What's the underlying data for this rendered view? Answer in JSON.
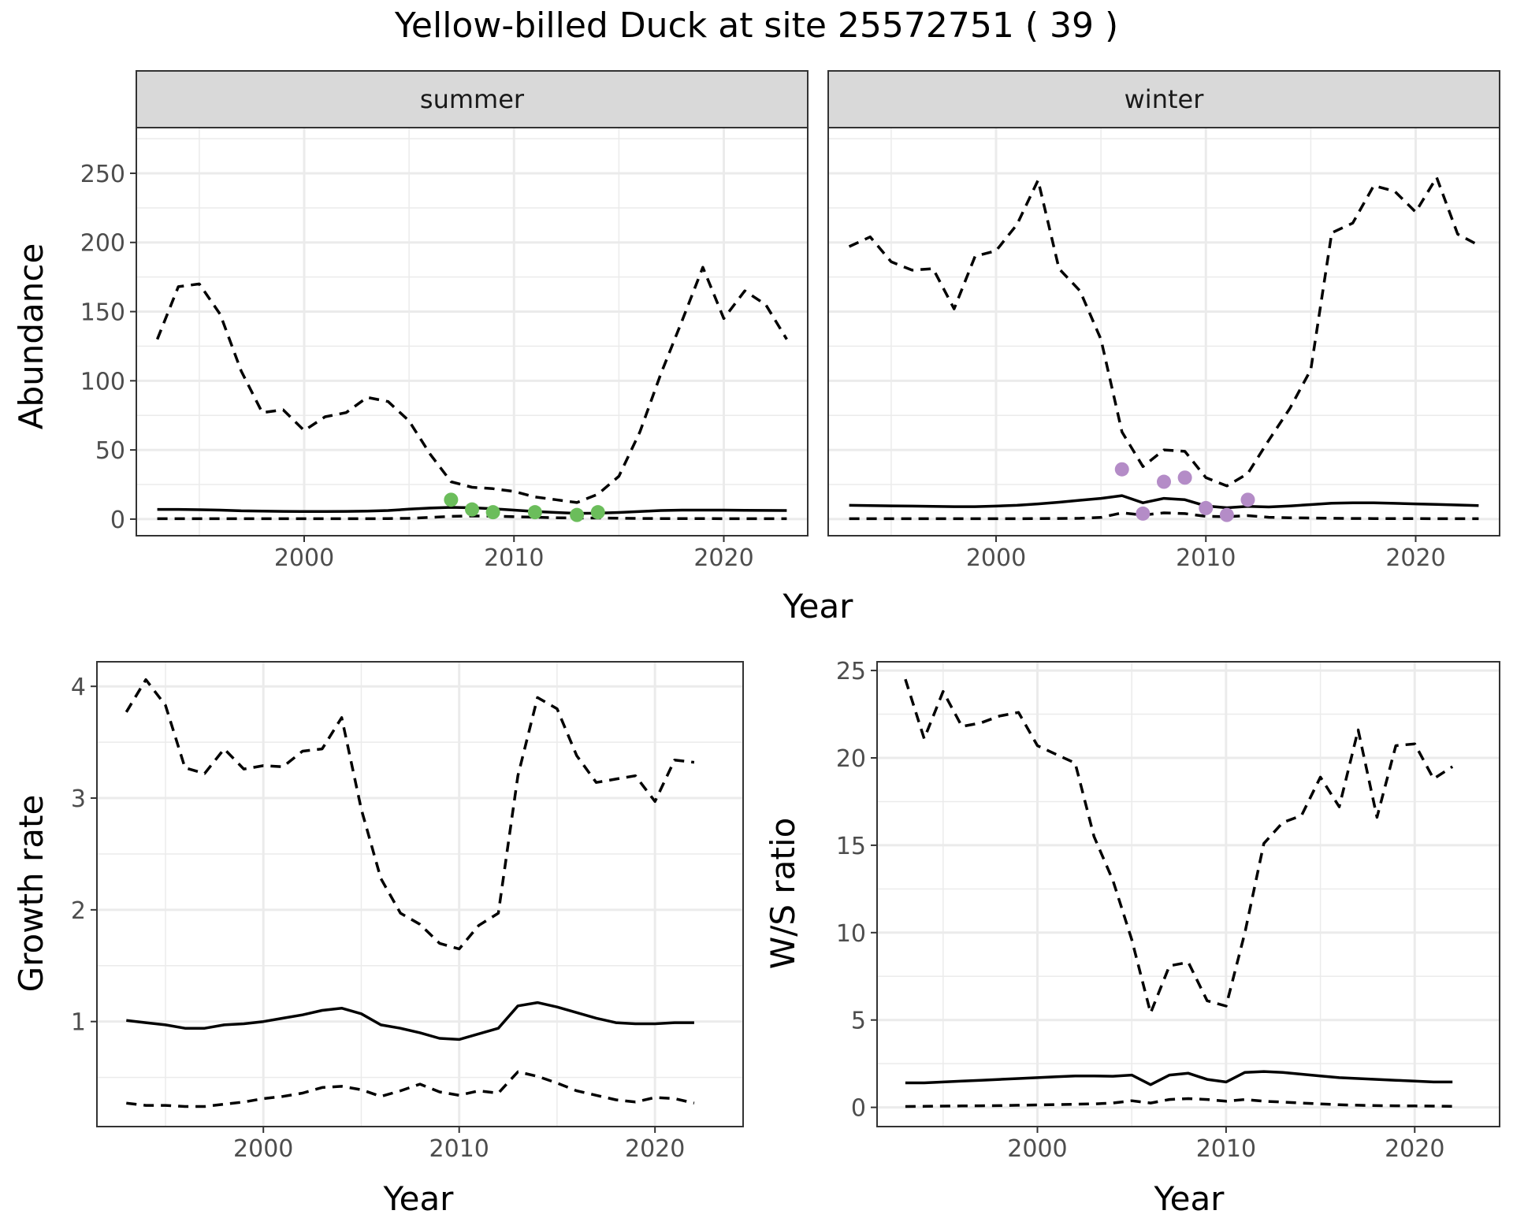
{
  "title": "Yellow-billed Duck at site 25572751 ( 39 )",
  "chart_data": [
    {
      "type": "line",
      "panel": "summer",
      "facet_label": "summer",
      "ylabel": "Abundance",
      "xlabel": "Year",
      "shared_x_title": "Year",
      "xlim": [
        1992,
        2024
      ],
      "ylim": [
        -12,
        283
      ],
      "x_ticks": [
        2000,
        2010,
        2020
      ],
      "y_ticks": [
        0,
        50,
        100,
        150,
        200,
        250
      ],
      "grid": true,
      "series": [
        {
          "style": "solid",
          "x": [
            1993,
            1994,
            1995,
            1996,
            1997,
            1998,
            1999,
            2000,
            2001,
            2002,
            2003,
            2004,
            2005,
            2006,
            2007,
            2008,
            2009,
            2010,
            2011,
            2012,
            2013,
            2014,
            2015,
            2016,
            2017,
            2018,
            2019,
            2020,
            2021,
            2022,
            2023
          ],
          "y": [
            7,
            7,
            6.8,
            6.5,
            6,
            5.8,
            5.6,
            5.5,
            5.5,
            5.6,
            5.8,
            6.2,
            7.2,
            8,
            8.5,
            8.2,
            7.5,
            6.5,
            5.5,
            4.8,
            4.2,
            4.3,
            4.8,
            5.5,
            6.2,
            6.5,
            6.5,
            6.5,
            6.4,
            6.3,
            6.2
          ]
        },
        {
          "style": "dashed",
          "x": [
            1993,
            1994,
            1995,
            1996,
            1997,
            1998,
            1999,
            2000,
            2001,
            2002,
            2003,
            2004,
            2005,
            2006,
            2007,
            2008,
            2009,
            2010,
            2011,
            2012,
            2013,
            2014,
            2015,
            2016,
            2017,
            2018,
            2019,
            2020,
            2021,
            2022,
            2023
          ],
          "y": [
            130,
            168,
            170,
            148,
            107,
            77,
            79,
            64,
            74,
            77,
            88,
            85,
            71,
            47,
            27,
            23,
            22,
            20,
            16,
            14,
            12,
            18,
            31,
            63,
            105,
            143,
            182,
            145,
            165,
            155,
            130
          ]
        },
        {
          "style": "dashed",
          "x": [
            1993,
            1994,
            1995,
            1996,
            1997,
            1998,
            1999,
            2000,
            2001,
            2002,
            2003,
            2004,
            2005,
            2006,
            2007,
            2008,
            2009,
            2010,
            2011,
            2012,
            2013,
            2014,
            2015,
            2016,
            2017,
            2018,
            2019,
            2020,
            2021,
            2022,
            2023
          ],
          "y": [
            0.3,
            0.3,
            0.3,
            0.3,
            0.3,
            0.3,
            0.3,
            0.3,
            0.3,
            0.3,
            0.3,
            0.4,
            0.6,
            1.2,
            2,
            2.3,
            2.2,
            1.7,
            1.4,
            1,
            0.8,
            0.8,
            0.7,
            0.5,
            0.4,
            0.4,
            0.4,
            0.3,
            0.3,
            0.3,
            0.3
          ]
        }
      ],
      "points": {
        "color": "#6bbd5b",
        "x": [
          2007,
          2008,
          2009,
          2011,
          2013,
          2014
        ],
        "y": [
          14,
          7,
          5,
          5,
          3,
          5
        ]
      }
    },
    {
      "type": "line",
      "panel": "winter",
      "facet_label": "winter",
      "xlim": [
        1992,
        2024
      ],
      "ylim": [
        -12,
        283
      ],
      "x_ticks": [
        2000,
        2010,
        2020
      ],
      "grid": true,
      "series": [
        {
          "style": "solid",
          "x": [
            1993,
            1994,
            1995,
            1996,
            1997,
            1998,
            1999,
            2000,
            2001,
            2002,
            2003,
            2004,
            2005,
            2006,
            2007,
            2008,
            2009,
            2010,
            2011,
            2012,
            2013,
            2014,
            2015,
            2016,
            2017,
            2018,
            2019,
            2020,
            2021,
            2022,
            2023
          ],
          "y": [
            10,
            9.8,
            9.6,
            9.4,
            9.2,
            9,
            9,
            9.4,
            10,
            11,
            12.2,
            13.6,
            15,
            17,
            11.8,
            15,
            14,
            9.5,
            8.2,
            9.2,
            8.8,
            9.5,
            10.5,
            11.5,
            11.8,
            11.8,
            11.4,
            11,
            10.6,
            10.2,
            9.8
          ]
        },
        {
          "style": "dashed",
          "x": [
            1993,
            1994,
            1995,
            1996,
            1997,
            1998,
            1999,
            2000,
            2001,
            2002,
            2003,
            2004,
            2005,
            2006,
            2007,
            2008,
            2009,
            2010,
            2011,
            2012,
            2013,
            2014,
            2015,
            2016,
            2017,
            2018,
            2019,
            2020,
            2021,
            2022,
            2023
          ],
          "y": [
            197,
            204,
            186,
            180,
            181,
            152,
            190,
            194,
            213,
            245,
            181,
            165,
            130,
            63,
            38,
            50,
            49,
            30,
            24,
            33,
            57,
            80,
            108,
            207,
            214,
            241,
            237,
            222,
            247,
            206,
            198
          ]
        },
        {
          "style": "dashed",
          "x": [
            1993,
            1994,
            1995,
            1996,
            1997,
            1998,
            1999,
            2000,
            2001,
            2002,
            2003,
            2004,
            2005,
            2006,
            2007,
            2008,
            2009,
            2010,
            2011,
            2012,
            2013,
            2014,
            2015,
            2016,
            2017,
            2018,
            2019,
            2020,
            2021,
            2022,
            2023
          ],
          "y": [
            0.3,
            0.3,
            0.3,
            0.3,
            0.3,
            0.3,
            0.3,
            0.3,
            0.3,
            0.4,
            0.5,
            0.6,
            1.2,
            4.5,
            3,
            4.5,
            4,
            2,
            1.8,
            2.5,
            1.3,
            1,
            0.8,
            0.6,
            0.5,
            0.4,
            0.4,
            0.4,
            0.3,
            0.3,
            0.3
          ]
        }
      ],
      "points": {
        "color": "#b48cc7",
        "x": [
          2006,
          2007,
          2008,
          2009,
          2010,
          2011,
          2012
        ],
        "y": [
          36,
          4,
          27,
          30,
          8,
          3,
          14
        ]
      }
    },
    {
      "type": "line",
      "panel": "growth",
      "ylabel": "Growth rate",
      "xlabel": "Year",
      "xlim": [
        1991.5,
        2024.5
      ],
      "ylim": [
        0.06,
        4.22
      ],
      "x_ticks": [
        2000,
        2010,
        2020
      ],
      "y_ticks": [
        1,
        2,
        3,
        4
      ],
      "grid": true,
      "series": [
        {
          "style": "solid",
          "x": [
            1993,
            1994,
            1995,
            1996,
            1997,
            1998,
            1999,
            2000,
            2001,
            2002,
            2003,
            2004,
            2005,
            2006,
            2007,
            2008,
            2009,
            2010,
            2011,
            2012,
            2013,
            2014,
            2015,
            2016,
            2017,
            2018,
            2019,
            2020,
            2021,
            2022
          ],
          "y": [
            1.01,
            0.99,
            0.97,
            0.94,
            0.94,
            0.97,
            0.98,
            1.0,
            1.03,
            1.06,
            1.1,
            1.12,
            1.07,
            0.97,
            0.94,
            0.9,
            0.85,
            0.84,
            0.89,
            0.94,
            1.14,
            1.17,
            1.13,
            1.08,
            1.03,
            0.99,
            0.98,
            0.98,
            0.99,
            0.99
          ]
        },
        {
          "style": "dashed",
          "x": [
            1993,
            1994,
            1995,
            1996,
            1997,
            1998,
            1999,
            2000,
            2001,
            2002,
            2003,
            2004,
            2005,
            2006,
            2007,
            2008,
            2009,
            2010,
            2011,
            2012,
            2013,
            2014,
            2015,
            2016,
            2017,
            2018,
            2019,
            2020,
            2021,
            2022
          ],
          "y": [
            3.77,
            4.06,
            3.83,
            3.27,
            3.22,
            3.44,
            3.26,
            3.29,
            3.28,
            3.42,
            3.44,
            3.72,
            2.9,
            2.28,
            1.97,
            1.87,
            1.7,
            1.65,
            1.86,
            1.97,
            3.2,
            3.9,
            3.8,
            3.38,
            3.14,
            3.17,
            3.2,
            2.97,
            3.34,
            3.32
          ]
        },
        {
          "style": "dashed",
          "x": [
            1993,
            1994,
            1995,
            1996,
            1997,
            1998,
            1999,
            2000,
            2001,
            2002,
            2003,
            2004,
            2005,
            2006,
            2007,
            2008,
            2009,
            2010,
            2011,
            2012,
            2013,
            2014,
            2015,
            2016,
            2017,
            2018,
            2019,
            2020,
            2021,
            2022
          ],
          "y": [
            0.27,
            0.25,
            0.25,
            0.24,
            0.24,
            0.26,
            0.28,
            0.31,
            0.33,
            0.36,
            0.41,
            0.42,
            0.39,
            0.33,
            0.38,
            0.44,
            0.37,
            0.34,
            0.38,
            0.36,
            0.55,
            0.51,
            0.45,
            0.38,
            0.34,
            0.3,
            0.28,
            0.32,
            0.31,
            0.27
          ]
        }
      ]
    },
    {
      "type": "line",
      "panel": "ratio",
      "ylabel": "W/S ratio",
      "xlabel": "Year",
      "xlim": [
        1991.5,
        2024.5
      ],
      "ylim": [
        -1.1,
        25.5
      ],
      "x_ticks": [
        2000,
        2010,
        2020
      ],
      "y_ticks": [
        0,
        5,
        10,
        15,
        20,
        25
      ],
      "grid": true,
      "series": [
        {
          "style": "solid",
          "x": [
            1993,
            1994,
            1995,
            1996,
            1997,
            1998,
            1999,
            2000,
            2001,
            2002,
            2003,
            2004,
            2005,
            2006,
            2007,
            2008,
            2009,
            2010,
            2011,
            2012,
            2013,
            2014,
            2015,
            2016,
            2017,
            2018,
            2019,
            2020,
            2021,
            2022
          ],
          "y": [
            1.4,
            1.4,
            1.45,
            1.5,
            1.55,
            1.6,
            1.65,
            1.7,
            1.75,
            1.8,
            1.8,
            1.78,
            1.85,
            1.3,
            1.85,
            1.95,
            1.6,
            1.45,
            2.0,
            2.05,
            2.0,
            1.9,
            1.8,
            1.7,
            1.65,
            1.6,
            1.55,
            1.5,
            1.45,
            1.45
          ]
        },
        {
          "style": "dashed",
          "x": [
            1993,
            1994,
            1995,
            1996,
            1997,
            1998,
            1999,
            2000,
            2001,
            2002,
            2003,
            2004,
            2005,
            2006,
            2007,
            2008,
            2009,
            2010,
            2011,
            2012,
            2013,
            2014,
            2015,
            2016,
            2017,
            2018,
            2019,
            2020,
            2021,
            2022
          ],
          "y": [
            24.5,
            21.1,
            23.8,
            21.8,
            22.0,
            22.4,
            22.6,
            20.7,
            20.2,
            19.7,
            15.5,
            13.0,
            9.6,
            5.4,
            8.1,
            8.3,
            6.1,
            5.8,
            10.0,
            15.1,
            16.3,
            16.7,
            18.9,
            17.2,
            21.6,
            16.6,
            20.7,
            20.8,
            18.8,
            19.5
          ]
        },
        {
          "style": "dashed",
          "x": [
            1993,
            1994,
            1995,
            1996,
            1997,
            1998,
            1999,
            2000,
            2001,
            2002,
            2003,
            2004,
            2005,
            2006,
            2007,
            2008,
            2009,
            2010,
            2011,
            2012,
            2013,
            2014,
            2015,
            2016,
            2017,
            2018,
            2019,
            2020,
            2021,
            2022
          ],
          "y": [
            0.05,
            0.06,
            0.07,
            0.08,
            0.09,
            0.1,
            0.12,
            0.14,
            0.16,
            0.18,
            0.2,
            0.25,
            0.38,
            0.25,
            0.45,
            0.5,
            0.45,
            0.35,
            0.45,
            0.35,
            0.3,
            0.25,
            0.2,
            0.15,
            0.12,
            0.1,
            0.09,
            0.08,
            0.07,
            0.06
          ]
        }
      ]
    }
  ]
}
